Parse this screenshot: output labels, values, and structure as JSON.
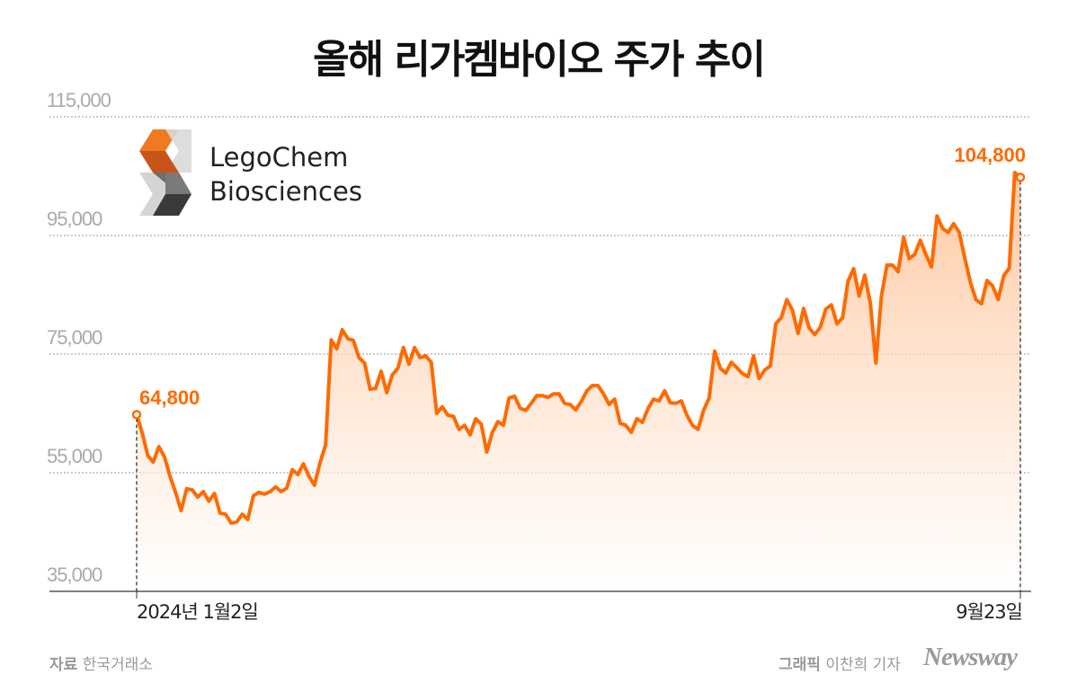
{
  "title": "올해 리가켐바이오 주가 추이",
  "logo": {
    "line1": "LegoChem",
    "line2": "Biosciences"
  },
  "footer": {
    "source_label": "자료",
    "source": "한국거래소",
    "graphic_label": "그래픽",
    "author": "이찬희 기자",
    "brand": "Newsway"
  },
  "colors": {
    "line": "#ff6a00",
    "fill": "#ffcfae",
    "grid": "#999999"
  },
  "chart_data": {
    "type": "area",
    "title": "올해 리가켐바이오 주가 추이",
    "xlabel": "",
    "ylabel": "",
    "ylim": [
      35000,
      115000
    ],
    "yticks": [
      35000,
      55000,
      75000,
      95000,
      115000
    ],
    "ytick_labels": [
      "35,000",
      "55,000",
      "75,000",
      "95,000",
      "115,000"
    ],
    "xtick_labels": [
      "2024년 1월2일",
      "9월23일"
    ],
    "grid": "horizontal dotted",
    "annotations": [
      {
        "label": "64,800",
        "value": 64800,
        "at": "start"
      },
      {
        "label": "104,800",
        "value": 104800,
        "at": "end"
      }
    ],
    "values": [
      64800,
      61700,
      57900,
      56800,
      59400,
      57700,
      54400,
      51700,
      48600,
      52300,
      52100,
      50900,
      51800,
      50200,
      51500,
      48200,
      48000,
      46500,
      46700,
      48000,
      47100,
      51100,
      51700,
      51400,
      51800,
      52600,
      51800,
      52400,
      55500,
      54700,
      56500,
      54400,
      52900,
      56700,
      59700,
      77400,
      75900,
      79100,
      77600,
      77300,
      74400,
      73500,
      69100,
      69200,
      72100,
      68500,
      71500,
      72600,
      76100,
      73300,
      76100,
      74400,
      74700,
      73600,
      65000,
      66100,
      64700,
      64500,
      62300,
      63000,
      61400,
      64100,
      63200,
      58500,
      61800,
      63600,
      63000,
      67600,
      67900,
      65900,
      65500,
      66700,
      68000,
      68000,
      67700,
      68300,
      68300,
      66700,
      66500,
      65600,
      67000,
      68800,
      69700,
      69700,
      68300,
      66500,
      67400,
      63300,
      63000,
      61800,
      64100,
      63500,
      65800,
      67400,
      67100,
      68800,
      66800,
      66700,
      67100,
      64700,
      63000,
      62300,
      65500,
      67600,
      75500,
      72600,
      71800,
      73600,
      72700,
      71700,
      71200,
      74700,
      70900,
      72300,
      73000,
      80100,
      81200,
      84200,
      82400,
      78500,
      82700,
      79400,
      78300,
      79500,
      82600,
      83300,
      80100,
      81100,
      87300,
      89400,
      84800,
      88300,
      83600,
      73500,
      84700,
      90000,
      90000,
      88900,
      94700,
      91100,
      91800,
      94200,
      91800,
      89700,
      98300,
      96200,
      95500,
      97000,
      95500,
      91200,
      87100,
      84200,
      83500,
      87400,
      86500,
      84200,
      88200,
      89500,
      105600,
      104800
    ]
  }
}
